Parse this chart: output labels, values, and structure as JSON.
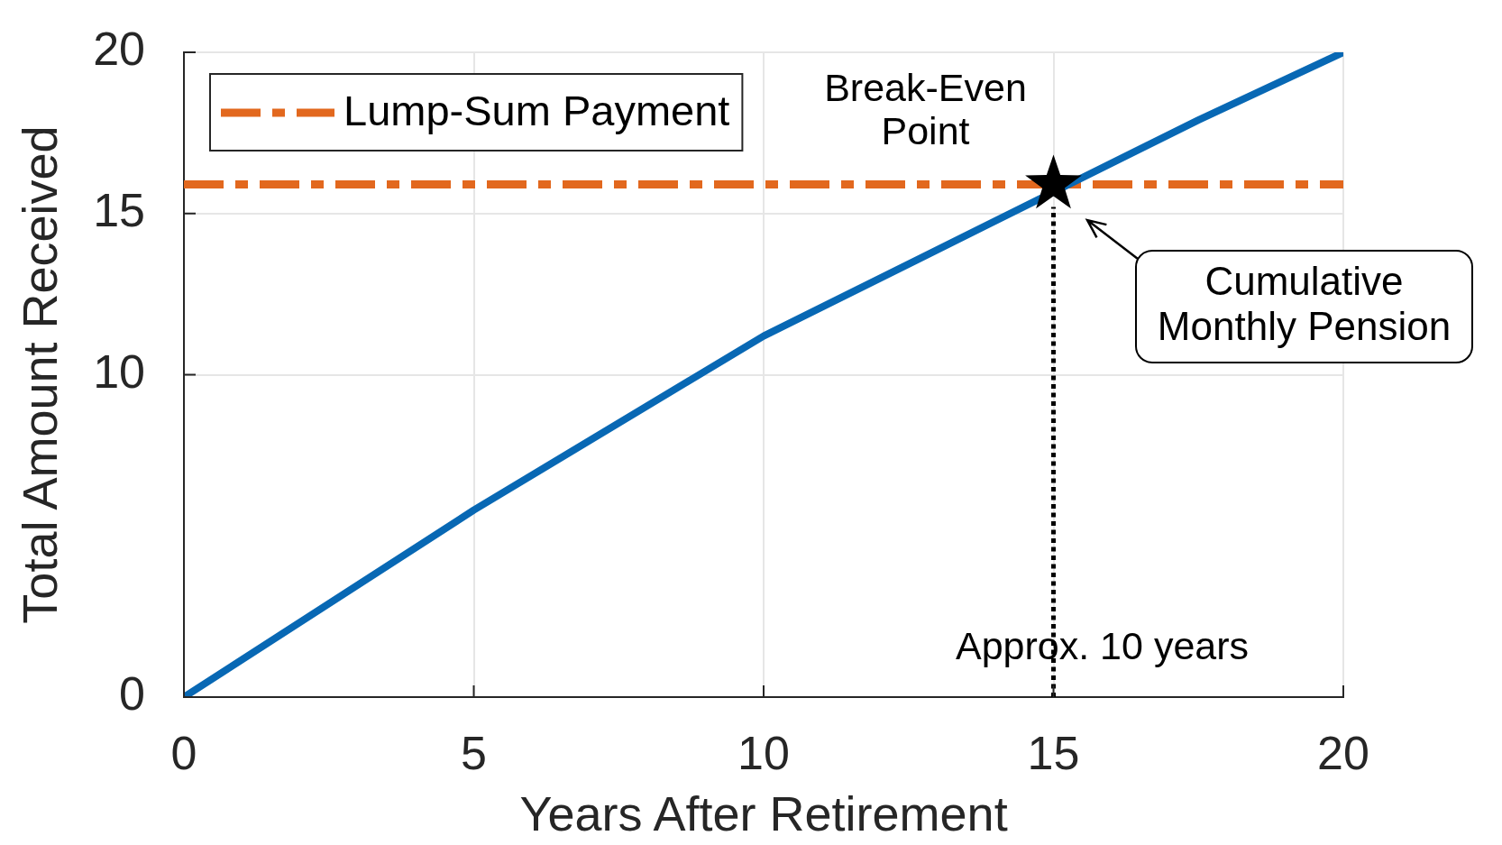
{
  "chart_data": {
    "type": "line",
    "xlabel": "Years After Retirement",
    "ylabel": "Total Amount Received",
    "xlim": [
      0,
      20
    ],
    "ylim": [
      0,
      20
    ],
    "xticks": [
      0,
      5,
      10,
      15,
      20
    ],
    "yticks": [
      0,
      10,
      15,
      20
    ],
    "grid": true,
    "legend": "top left",
    "series": [
      {
        "x": [
          0,
          5,
          10,
          17.5,
          20
        ],
        "values": [
          0,
          5.8,
          11.2,
          17.9,
          20
        ],
        "color": "#0868b4"
      },
      {
        "name": "Lump-Sum Payment",
        "x": [
          0,
          20
        ],
        "values": [
          15.9,
          15.9
        ],
        "color": "#e2681e",
        "line_style": "dashed"
      },
      {
        "x": [
          15,
          15
        ],
        "values": [
          0,
          15.2
        ],
        "color": "#000000",
        "line_style": "dotted"
      },
      {
        "type": "scatter",
        "x": [
          15
        ],
        "values": [
          15.9
        ],
        "color": "#000000",
        "marker": "star"
      }
    ],
    "annotations": [
      {
        "text": "Break-Even Point",
        "x": 15,
        "y": 15.9
      },
      "Cumulative Monthly Pension",
      {
        "text": "Approx. 10 years",
        "x": 15,
        "y": 1.5
      }
    ]
  }
}
